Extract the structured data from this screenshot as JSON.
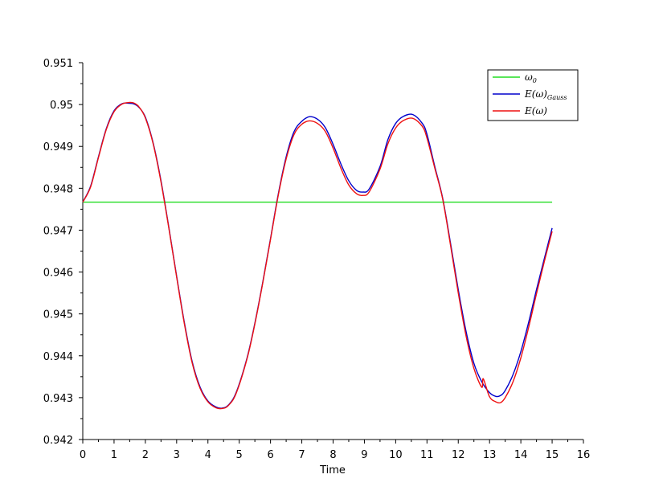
{
  "chart_data": {
    "type": "line",
    "title": "",
    "xlabel": "Time",
    "ylabel": "",
    "xlim": [
      0,
      16
    ],
    "ylim": [
      0.942,
      0.951
    ],
    "xticks": [
      0,
      1,
      2,
      3,
      4,
      5,
      6,
      7,
      8,
      9,
      10,
      11,
      12,
      13,
      14,
      15,
      16
    ],
    "xtick_labels": [
      "0",
      "1",
      "2",
      "3",
      "4",
      "5",
      "6",
      "7",
      "8",
      "9",
      "10",
      "11",
      "12",
      "13",
      "14",
      "15",
      "16"
    ],
    "yticks": [
      0.942,
      0.943,
      0.944,
      0.945,
      0.946,
      0.947,
      0.948,
      0.949,
      0.95,
      0.951
    ],
    "ytick_labels": [
      "0.942",
      "0.943",
      "0.944",
      "0.945",
      "0.946",
      "0.947",
      "0.948",
      "0.949",
      "0.95",
      "0.951"
    ],
    "grid": false,
    "legend_position": "top-right",
    "legend": [
      {
        "label": "ω",
        "sub": "0",
        "color": "#22dd22"
      },
      {
        "label": "E(ω)",
        "sub": "Gauss",
        "color": "#0000cc"
      },
      {
        "label": "E(ω)",
        "sub": "",
        "color": "#ee1111"
      }
    ],
    "series": [
      {
        "name": "ω0",
        "color": "#22dd22",
        "x": [
          0,
          15
        ],
        "y": [
          0.94767,
          0.94767
        ]
      },
      {
        "name": "E(ω)Gauss",
        "color": "#0000cc",
        "x": [
          0,
          0.25,
          0.5,
          0.75,
          1.0,
          1.25,
          1.5,
          1.65,
          1.8,
          2.0,
          2.25,
          2.5,
          2.75,
          3.0,
          3.25,
          3.5,
          3.75,
          4.0,
          4.25,
          4.45,
          4.65,
          4.9,
          5.25,
          5.5,
          5.75,
          6.0,
          6.25,
          6.5,
          6.75,
          7.0,
          7.25,
          7.5,
          7.75,
          8.0,
          8.25,
          8.5,
          8.75,
          8.95,
          9.15,
          9.5,
          9.75,
          10.0,
          10.25,
          10.55,
          10.85,
          11.0,
          11.25,
          11.5,
          11.75,
          12.0,
          12.25,
          12.5,
          12.75,
          13.0,
          13.2,
          13.35,
          13.5,
          13.75,
          14.0,
          14.25,
          14.5,
          14.75,
          15.0
        ],
        "y": [
          0.94767,
          0.94805,
          0.94875,
          0.94942,
          0.94985,
          0.95002,
          0.95003,
          0.95001,
          0.94993,
          0.9497,
          0.94908,
          0.94818,
          0.94707,
          0.9459,
          0.94478,
          0.94385,
          0.94325,
          0.94292,
          0.94278,
          0.94275,
          0.94282,
          0.94312,
          0.94395,
          0.94478,
          0.94575,
          0.9468,
          0.94787,
          0.94875,
          0.94935,
          0.9496,
          0.94971,
          0.94965,
          0.94945,
          0.94905,
          0.94858,
          0.94818,
          0.94795,
          0.94791,
          0.94798,
          0.94852,
          0.94916,
          0.94955,
          0.94972,
          0.94976,
          0.94955,
          0.94929,
          0.94852,
          0.94777,
          0.9467,
          0.94558,
          0.94458,
          0.94382,
          0.94338,
          0.94312,
          0.94303,
          0.94305,
          0.94317,
          0.94355,
          0.9441,
          0.9448,
          0.94558,
          0.94632,
          0.94705
        ]
      },
      {
        "name": "E(ω)",
        "color": "#ee1111",
        "x": [
          0,
          0.25,
          0.5,
          0.75,
          1.0,
          1.25,
          1.5,
          1.65,
          1.8,
          2.0,
          2.25,
          2.5,
          2.75,
          3.0,
          3.25,
          3.5,
          3.75,
          4.0,
          4.25,
          4.45,
          4.65,
          4.9,
          5.25,
          5.5,
          5.75,
          6.0,
          6.25,
          6.5,
          6.75,
          7.0,
          7.25,
          7.5,
          7.75,
          8.0,
          8.25,
          8.5,
          8.75,
          8.95,
          9.15,
          9.5,
          9.75,
          10.0,
          10.25,
          10.55,
          10.85,
          11.0,
          11.25,
          11.5,
          11.75,
          12.0,
          12.25,
          12.5,
          12.75,
          12.8,
          13.0,
          13.2,
          13.35,
          13.5,
          13.75,
          14.0,
          14.25,
          14.5,
          14.75,
          15.0
        ],
        "y": [
          0.94767,
          0.94803,
          0.94873,
          0.9494,
          0.94983,
          0.95001,
          0.95005,
          0.95003,
          0.94994,
          0.94968,
          0.94906,
          0.94815,
          0.94705,
          0.94588,
          0.94475,
          0.94382,
          0.94322,
          0.9429,
          0.94276,
          0.94274,
          0.94281,
          0.9431,
          0.94393,
          0.94476,
          0.94573,
          0.94678,
          0.94784,
          0.9487,
          0.94928,
          0.94953,
          0.94961,
          0.94955,
          0.94936,
          0.94896,
          0.94848,
          0.94808,
          0.94787,
          0.94783,
          0.94791,
          0.94846,
          0.94906,
          0.94944,
          0.94962,
          0.94967,
          0.94948,
          0.9492,
          0.94848,
          0.94775,
          0.94665,
          0.9455,
          0.94447,
          0.9437,
          0.94325,
          0.94345,
          0.94302,
          0.9429,
          0.94288,
          0.943,
          0.94338,
          0.94395,
          0.94468,
          0.94548,
          0.94625,
          0.94697
        ]
      }
    ]
  }
}
